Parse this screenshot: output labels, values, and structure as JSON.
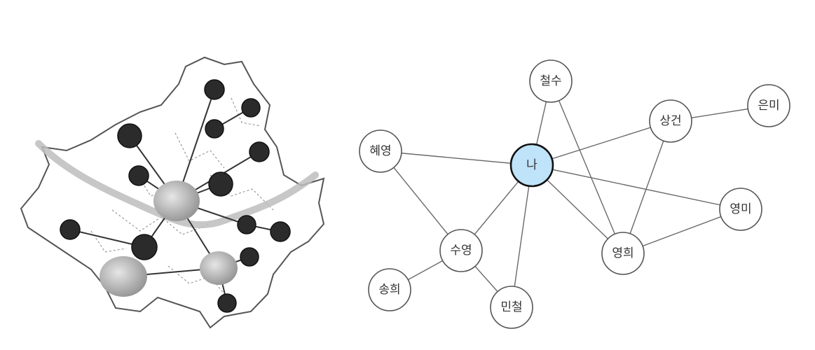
{
  "map": {
    "hubs": [
      {
        "id": "hub-center",
        "kind": "hub"
      },
      {
        "id": "hub-southwest",
        "kind": "hub"
      },
      {
        "id": "hub-south",
        "kind": "hub"
      }
    ],
    "spokes": 16
  },
  "graph": {
    "center_color": "#bfe3f8",
    "nodes": [
      {
        "id": "me",
        "label": "나",
        "center": true
      },
      {
        "id": "cheolsu",
        "label": "철수"
      },
      {
        "id": "sanggeon",
        "label": "상건"
      },
      {
        "id": "eunmi",
        "label": "은미"
      },
      {
        "id": "hyeyoung",
        "label": "혜영"
      },
      {
        "id": "youngmi",
        "label": "영미"
      },
      {
        "id": "suyoung",
        "label": "수영"
      },
      {
        "id": "younghee",
        "label": "영희"
      },
      {
        "id": "songhee",
        "label": "송희"
      },
      {
        "id": "mincheol",
        "label": "민철"
      }
    ],
    "edges": [
      [
        "me",
        "cheolsu"
      ],
      [
        "me",
        "sanggeon"
      ],
      [
        "me",
        "hyeyoung"
      ],
      [
        "me",
        "youngmi"
      ],
      [
        "me",
        "suyoung"
      ],
      [
        "me",
        "younghee"
      ],
      [
        "me",
        "mincheol"
      ],
      [
        "cheolsu",
        "younghee"
      ],
      [
        "sanggeon",
        "eunmi"
      ],
      [
        "sanggeon",
        "younghee"
      ],
      [
        "hyeyoung",
        "suyoung"
      ],
      [
        "suyoung",
        "songhee"
      ],
      [
        "suyoung",
        "mincheol"
      ],
      [
        "younghee",
        "youngmi"
      ]
    ]
  }
}
